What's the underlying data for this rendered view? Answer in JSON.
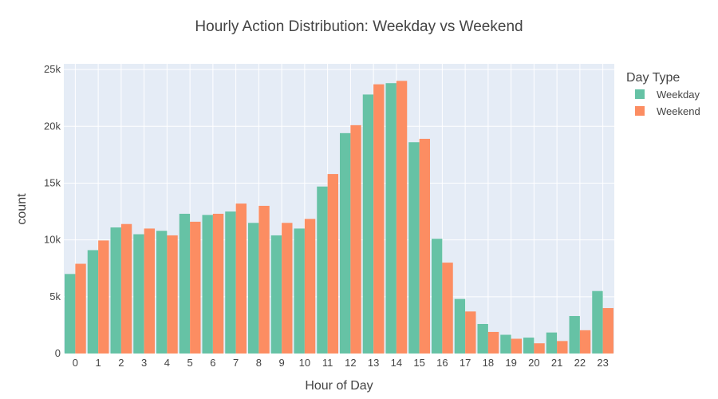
{
  "chart_data": {
    "type": "bar",
    "title": "Hourly Action Distribution: Weekday vs Weekend",
    "xlabel": "Hour of Day",
    "ylabel": "count",
    "categories": [
      "0",
      "1",
      "2",
      "3",
      "4",
      "5",
      "6",
      "7",
      "8",
      "9",
      "10",
      "11",
      "12",
      "13",
      "14",
      "15",
      "16",
      "17",
      "18",
      "19",
      "20",
      "21",
      "22",
      "23"
    ],
    "series": [
      {
        "name": "Weekday",
        "color": "#66c2a5",
        "values": [
          7000,
          9100,
          11100,
          10500,
          10800,
          12300,
          12200,
          12500,
          11500,
          10400,
          11000,
          14700,
          19400,
          22800,
          23800,
          18600,
          10100,
          4800,
          2600,
          1650,
          1400,
          1850,
          3300,
          5500
        ]
      },
      {
        "name": "Weekend",
        "color": "#fc8d62",
        "values": [
          7900,
          9950,
          11400,
          11000,
          10400,
          11600,
          12300,
          13200,
          13000,
          11500,
          11850,
          15800,
          20100,
          23700,
          24000,
          18900,
          8000,
          3700,
          1900,
          1300,
          900,
          1100,
          2050,
          4000
        ]
      }
    ],
    "ylim": [
      0,
      25500
    ],
    "y_ticks": [
      0,
      5000,
      10000,
      15000,
      20000,
      25000
    ],
    "y_tick_labels": [
      "0",
      "5k",
      "10k",
      "15k",
      "20k",
      "25k"
    ],
    "grid": true,
    "plot_background": "#e5ecf6",
    "legend": {
      "title": "Day Type",
      "placement": "right"
    }
  }
}
